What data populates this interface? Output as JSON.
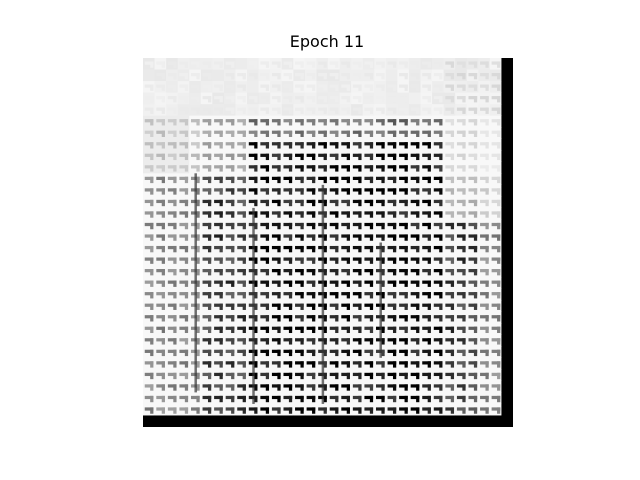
{
  "figure": {
    "title": "Epoch 11"
  },
  "colors": {
    "background": "#ffffff",
    "text": "#000000",
    "pixel_dark": "#000000",
    "pixel_light": "#f4f4f4"
  },
  "image": {
    "description_kind": "grayscale generated sample",
    "grid_cells": 32
  }
}
